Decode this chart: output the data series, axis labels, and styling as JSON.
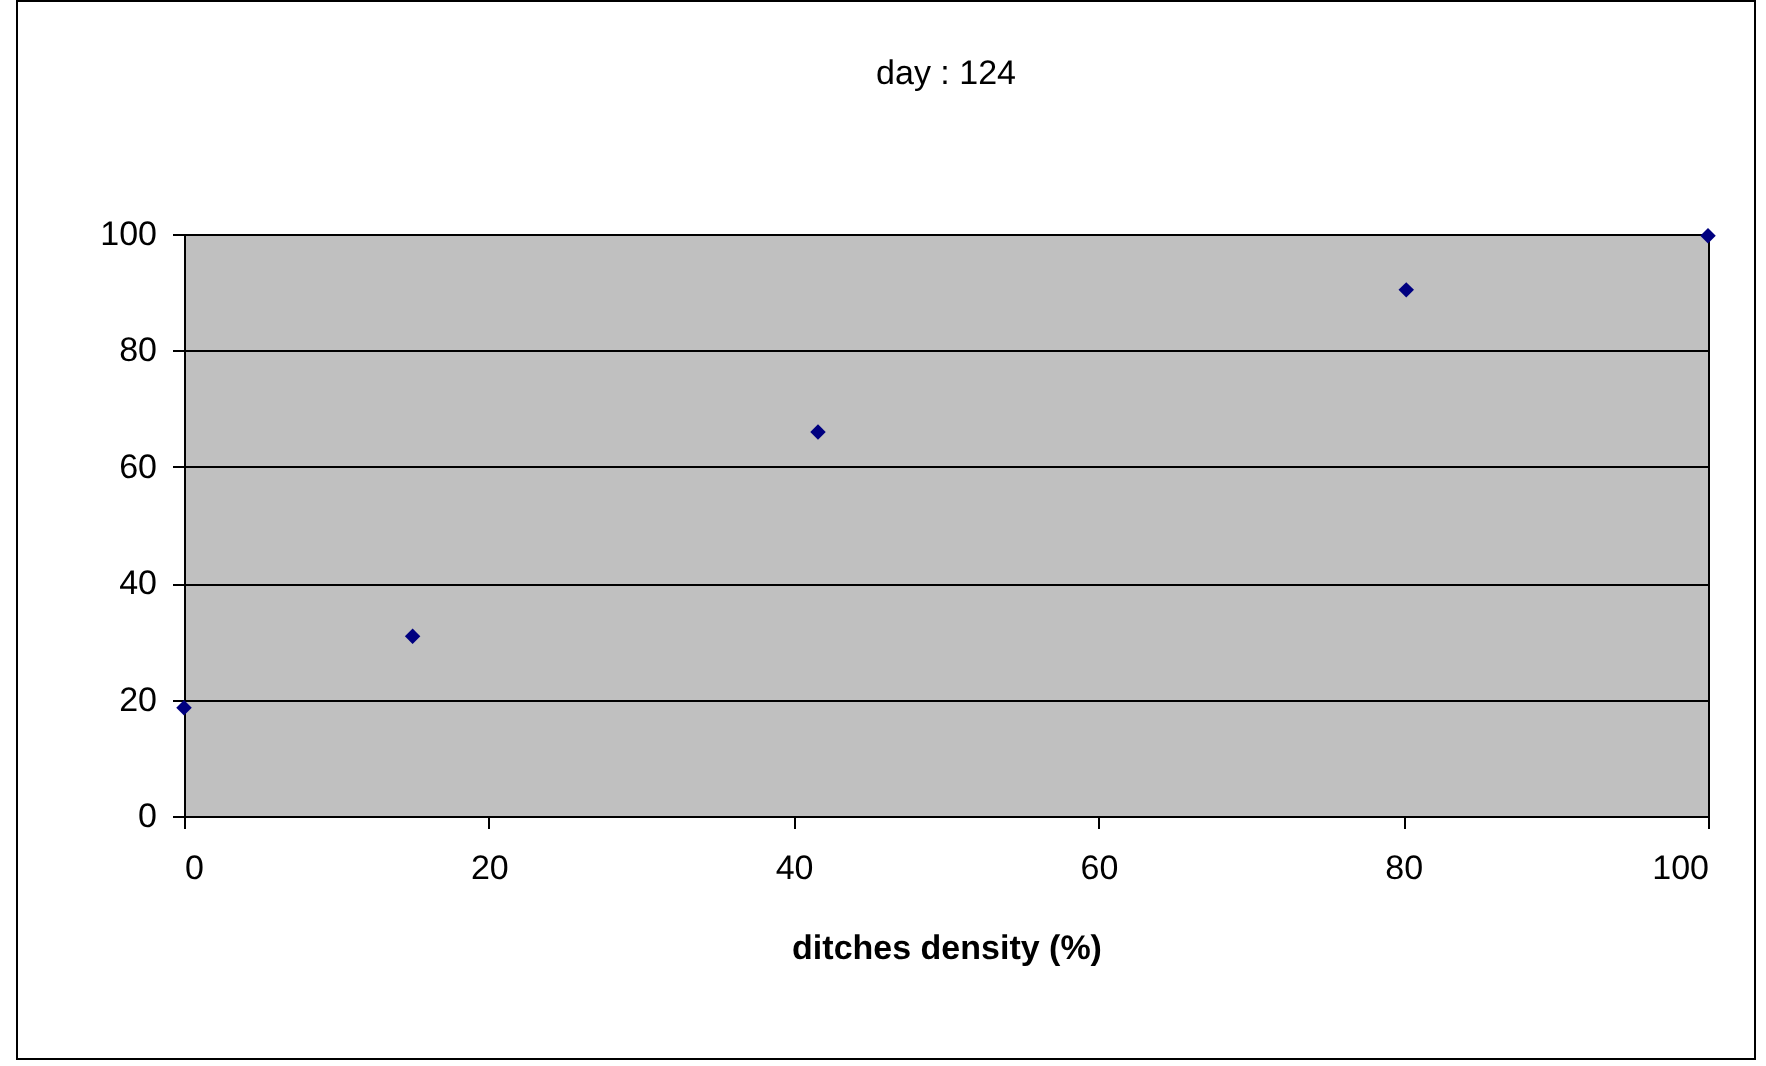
{
  "chart_data": {
    "type": "scatter",
    "title": "day : 124",
    "xlabel": "ditches density (%)",
    "x": [
      0,
      15,
      41.6,
      80.2,
      100
    ],
    "series": [
      {
        "color": "#000080",
        "values": [
          18.6,
          30.9,
          66,
          90.4,
          99.7
        ]
      }
    ],
    "xlim": [
      0,
      100
    ],
    "xticks": [
      0,
      20,
      40,
      60,
      80,
      100
    ],
    "ylim": [
      0,
      100
    ],
    "yticks": [
      0,
      20,
      40,
      60,
      80,
      100
    ],
    "grid": "y",
    "legend": false,
    "marker": "diamond"
  }
}
